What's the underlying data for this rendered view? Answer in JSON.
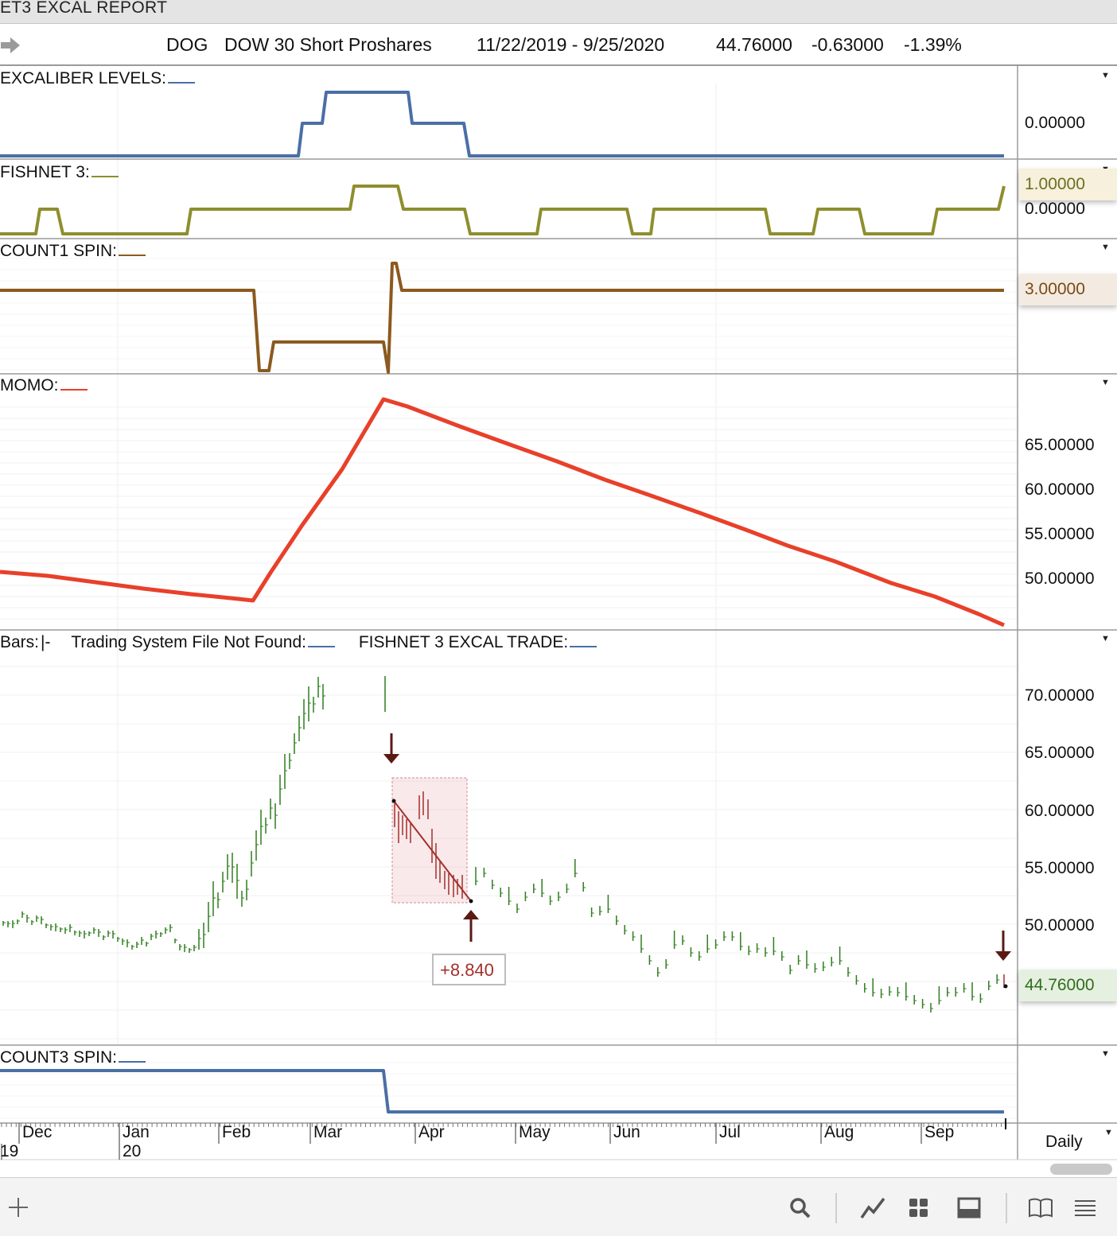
{
  "window": {
    "title": "ET3 EXCAL REPORT"
  },
  "symbol_bar": {
    "ticker": "DOG",
    "name": "DOW 30 Short Proshares",
    "date_range": "11/22/2019 - 9/25/2020",
    "last": "44.76000",
    "change": "-0.63000",
    "change_pct": "-1.39%"
  },
  "panes": {
    "excaliber": {
      "label": "EXCALIBER LEVELS:",
      "color": "#4a6fa5",
      "y_label": "0.00000"
    },
    "fishnet": {
      "label": "FISHNET 3:",
      "color": "#8e8e2e",
      "value_label": "1.00000",
      "y_label": "0.00000"
    },
    "count1": {
      "label": "COUNT1 SPIN:",
      "color": "#8b5a1e",
      "value_label": "3.00000"
    },
    "momo": {
      "label": "MOMO:",
      "color": "#e8402a",
      "y_labels": [
        "65.00000",
        "60.00000",
        "55.00000",
        "50.00000"
      ]
    },
    "bars": {
      "label": "Bars:",
      "bars_glyph": "|-",
      "label2": "Trading System File Not Found:",
      "label3": "FISHNET 3 EXCAL TRADE:",
      "y_labels": [
        "70.00000",
        "65.00000",
        "60.00000",
        "55.00000",
        "50.00000"
      ],
      "last_label": "44.76000",
      "trade_profit": "+8.840",
      "up_color": "#2e7d1e",
      "down_color": "#a3302b"
    },
    "count3": {
      "label": "COUNT3 SPIN:",
      "color": "#4a6fa5"
    }
  },
  "x_axis": {
    "months": [
      "Dec",
      "Jan",
      "Feb",
      "Mar",
      "Apr",
      "May",
      "Jun",
      "Jul",
      "Aug",
      "Sep"
    ],
    "years": [
      "19",
      "20"
    ]
  },
  "interval": "Daily",
  "toolbar": {
    "add_icon": "plus-icon",
    "search_icon": "search-icon",
    "draw_icon": "line-tool-icon",
    "grid_icon": "grid-icon",
    "layout_icon": "panel-icon",
    "book_icon": "book-icon",
    "menu_icon": "menu-icon"
  }
}
